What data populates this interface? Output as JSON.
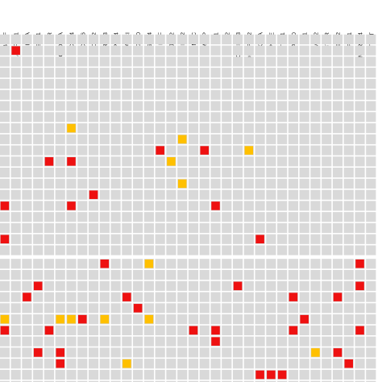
{
  "chart_data": {
    "type": "heatmap",
    "columns": [
      "BRAF",
      "ARFRP1",
      "ARID1A",
      "ASXL1",
      "ATR",
      "CKDN2A",
      "CDK4",
      "CDK6",
      "CDK12",
      "ERBB3",
      "EPHB4",
      "FANCI",
      "FGF10",
      "FGFR4",
      "HGF",
      "JAK2",
      "MDM2",
      "MYC",
      "MTAP",
      "NF1",
      "NF2",
      "NOTCH2/3",
      "PDL1/PDL2",
      "PIK3CA",
      "POLE",
      "PTCH1",
      "RAD50",
      "RB1",
      "RMB12",
      "RICTOR",
      "SETD2",
      "SF3B1",
      "SMARCA4",
      "TERT"
    ],
    "row_count": 32,
    "row_group_split_after": 19,
    "cells": [
      {
        "row": 1,
        "col": 1,
        "status": "red"
      },
      {
        "row": 8,
        "col": 6,
        "status": "orange"
      },
      {
        "row": 9,
        "col": 16,
        "status": "orange"
      },
      {
        "row": 10,
        "col": 14,
        "status": "red"
      },
      {
        "row": 10,
        "col": 18,
        "status": "red"
      },
      {
        "row": 10,
        "col": 22,
        "status": "orange"
      },
      {
        "row": 11,
        "col": 4,
        "status": "red"
      },
      {
        "row": 11,
        "col": 6,
        "status": "red"
      },
      {
        "row": 11,
        "col": 15,
        "status": "orange"
      },
      {
        "row": 13,
        "col": 16,
        "status": "orange"
      },
      {
        "row": 14,
        "col": 8,
        "status": "red"
      },
      {
        "row": 15,
        "col": 0,
        "status": "red"
      },
      {
        "row": 15,
        "col": 6,
        "status": "red"
      },
      {
        "row": 15,
        "col": 19,
        "status": "red"
      },
      {
        "row": 18,
        "col": 0,
        "status": "red"
      },
      {
        "row": 18,
        "col": 23,
        "status": "red"
      },
      {
        "row": 20,
        "col": 9,
        "status": "red"
      },
      {
        "row": 20,
        "col": 13,
        "status": "orange"
      },
      {
        "row": 20,
        "col": 32,
        "status": "red"
      },
      {
        "row": 22,
        "col": 3,
        "status": "red"
      },
      {
        "row": 22,
        "col": 21,
        "status": "red"
      },
      {
        "row": 22,
        "col": 32,
        "status": "red"
      },
      {
        "row": 23,
        "col": 2,
        "status": "red"
      },
      {
        "row": 23,
        "col": 11,
        "status": "red"
      },
      {
        "row": 23,
        "col": 26,
        "status": "red"
      },
      {
        "row": 23,
        "col": 30,
        "status": "red"
      },
      {
        "row": 24,
        "col": 12,
        "status": "red"
      },
      {
        "row": 25,
        "col": 0,
        "status": "orange"
      },
      {
        "row": 25,
        "col": 5,
        "status": "orange"
      },
      {
        "row": 25,
        "col": 6,
        "status": "orange"
      },
      {
        "row": 25,
        "col": 7,
        "status": "red"
      },
      {
        "row": 25,
        "col": 9,
        "status": "orange"
      },
      {
        "row": 25,
        "col": 13,
        "status": "orange"
      },
      {
        "row": 25,
        "col": 27,
        "status": "red"
      },
      {
        "row": 26,
        "col": 0,
        "status": "red"
      },
      {
        "row": 26,
        "col": 4,
        "status": "red"
      },
      {
        "row": 26,
        "col": 17,
        "status": "red"
      },
      {
        "row": 26,
        "col": 19,
        "status": "red"
      },
      {
        "row": 26,
        "col": 26,
        "status": "red"
      },
      {
        "row": 26,
        "col": 32,
        "status": "red"
      },
      {
        "row": 27,
        "col": 19,
        "status": "red"
      },
      {
        "row": 28,
        "col": 3,
        "status": "red"
      },
      {
        "row": 28,
        "col": 5,
        "status": "red"
      },
      {
        "row": 28,
        "col": 28,
        "status": "orange"
      },
      {
        "row": 28,
        "col": 30,
        "status": "red"
      },
      {
        "row": 29,
        "col": 5,
        "status": "red"
      },
      {
        "row": 29,
        "col": 11,
        "status": "orange"
      },
      {
        "row": 29,
        "col": 31,
        "status": "red"
      },
      {
        "row": 30,
        "col": 23,
        "status": "red"
      },
      {
        "row": 30,
        "col": 24,
        "status": "red"
      },
      {
        "row": 30,
        "col": 25,
        "status": "red"
      }
    ],
    "colors": {
      "empty": "#d9d9d9",
      "red": "#ee1111",
      "orange": "#ffc000",
      "grid": "#ffffff"
    },
    "grid": true,
    "legend": "none"
  }
}
